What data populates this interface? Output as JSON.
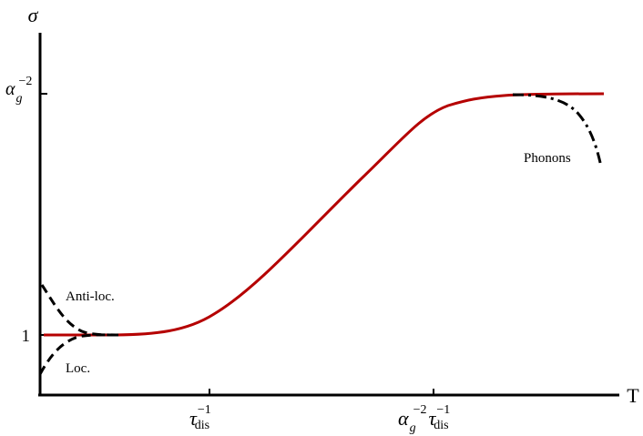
{
  "chart_data": {
    "type": "line",
    "title": "",
    "xlabel": "T",
    "ylabel": "σ",
    "x_ticks": [
      {
        "base": "τ",
        "sup": "−1",
        "sub": "dis"
      },
      {
        "base": "α",
        "sub1": "g",
        "sup1": "−2",
        "base2": "τ",
        "sup2": "−1",
        "sub2": "dis"
      }
    ],
    "y_ticks": [
      {
        "label": "1"
      },
      {
        "base": "α",
        "sub": "g",
        "sup": "−2"
      }
    ],
    "ylim_labels": [
      "1",
      "α_g^−2"
    ],
    "series": [
      {
        "style": "solid",
        "color": "#b50000",
        "description_points": [
          [
            0,
            0
          ],
          [
            0.15,
            0.0
          ],
          [
            0.3,
            0.03
          ],
          [
            0.45,
            0.35
          ],
          [
            0.6,
            0.75
          ],
          [
            0.75,
            0.98
          ],
          [
            0.9,
            1.0
          ],
          [
            1.0,
            1.0
          ]
        ]
      },
      {
        "name": "Anti-loc.",
        "style": "dashed",
        "color": "#000000",
        "points": [
          [
            0,
            0.2
          ],
          [
            0.03,
            0.08
          ],
          [
            0.08,
            0.005
          ],
          [
            0.13,
            0
          ]
        ]
      },
      {
        "name": "Loc.",
        "style": "dashed",
        "color": "#000000",
        "points": [
          [
            0,
            -0.16
          ],
          [
            0.03,
            -0.06
          ],
          [
            0.08,
            -0.005
          ],
          [
            0.13,
            0
          ]
        ]
      },
      {
        "name": "Phonons",
        "style": "dashdot",
        "color": "#000000",
        "points": [
          [
            0.84,
            1.0
          ],
          [
            0.9,
            0.98
          ],
          [
            0.95,
            0.85
          ],
          [
            1.0,
            0.7
          ]
        ]
      }
    ],
    "annotations": [
      "Anti-loc.",
      "Loc.",
      "Phonons"
    ]
  }
}
